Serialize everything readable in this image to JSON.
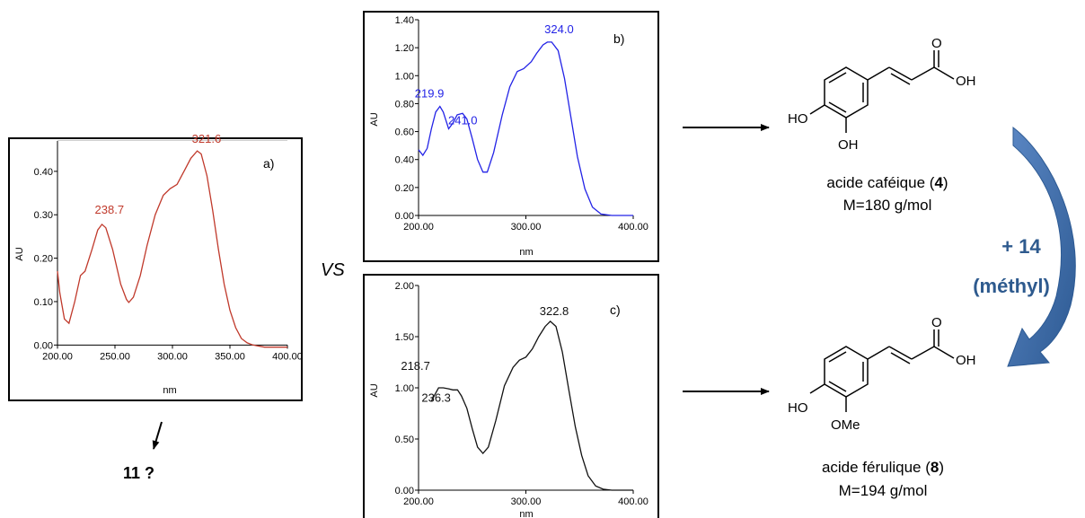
{
  "chart_data": [
    {
      "type": "line",
      "panel_label": "a)",
      "color": "#c0392b",
      "ylabel": "AU",
      "xlabel": "nm",
      "xlim": [
        200,
        400
      ],
      "ylim": [
        -0.02,
        0.47
      ],
      "x_ticks": [
        200,
        250,
        300,
        350,
        400
      ],
      "x_tick_labels": [
        "200.00",
        "250.00",
        "300.00",
        "350.00",
        "400.00"
      ],
      "y_ticks": [
        0.0,
        0.1,
        0.2,
        0.3,
        0.4
      ],
      "y_tick_labels": [
        "0.00",
        "0.10",
        "0.20",
        "0.30",
        "0.40"
      ],
      "grid": false,
      "peak_labels": [
        {
          "x": 238.7,
          "y": 0.278,
          "text": "238.7"
        },
        {
          "x": 321.6,
          "y": 0.447,
          "text": "321.6"
        }
      ],
      "x": [
        200,
        202,
        206,
        210,
        215,
        220,
        224,
        230,
        235,
        238.7,
        242,
        248,
        255,
        260,
        262,
        266,
        272,
        278,
        285,
        292,
        298,
        304,
        310,
        316,
        321.6,
        325,
        330,
        335,
        340,
        345,
        350,
        355,
        360,
        365,
        370,
        380,
        390,
        400
      ],
      "y": [
        0.17,
        0.12,
        0.06,
        0.05,
        0.1,
        0.16,
        0.17,
        0.22,
        0.265,
        0.278,
        0.27,
        0.22,
        0.14,
        0.105,
        0.098,
        0.11,
        0.16,
        0.23,
        0.3,
        0.345,
        0.36,
        0.37,
        0.4,
        0.43,
        0.447,
        0.44,
        0.39,
        0.31,
        0.22,
        0.14,
        0.08,
        0.04,
        0.015,
        0.005,
        0.0,
        -0.005,
        -0.005,
        -0.005
      ]
    },
    {
      "type": "line",
      "panel_label": "b)",
      "color": "#2323e6",
      "ylabel": "AU",
      "xlabel": "nm",
      "xlim": [
        200,
        400
      ],
      "ylim": [
        0,
        1.4
      ],
      "x_ticks": [
        200,
        300,
        400
      ],
      "x_tick_labels": [
        "200.00",
        "300.00",
        "400.00"
      ],
      "y_ticks": [
        0.0,
        0.2,
        0.4,
        0.6,
        0.8,
        1.0,
        1.2,
        1.4
      ],
      "y_tick_labels": [
        "0.00",
        "0.20",
        "0.40",
        "0.60",
        "0.80",
        "1.00",
        "1.20",
        "1.40"
      ],
      "grid": false,
      "peak_labels": [
        {
          "x": 219.9,
          "y": 0.78,
          "text": "219.9"
        },
        {
          "x": 241.0,
          "y": 0.73,
          "text": "241.0"
        },
        {
          "x": 324.0,
          "y": 1.24,
          "text": "324.0"
        }
      ],
      "x": [
        200,
        204,
        208,
        212,
        216,
        219.9,
        223,
        228,
        232,
        236,
        241,
        245,
        250,
        255,
        260,
        264,
        270,
        278,
        285,
        292,
        298,
        305,
        310,
        316,
        320,
        324,
        330,
        336,
        342,
        348,
        355,
        362,
        370,
        380,
        390,
        400
      ],
      "y": [
        0.47,
        0.43,
        0.48,
        0.62,
        0.74,
        0.78,
        0.74,
        0.62,
        0.66,
        0.72,
        0.73,
        0.69,
        0.55,
        0.4,
        0.31,
        0.31,
        0.45,
        0.72,
        0.92,
        1.03,
        1.05,
        1.1,
        1.16,
        1.22,
        1.24,
        1.24,
        1.18,
        0.98,
        0.7,
        0.42,
        0.19,
        0.06,
        0.01,
        0.0,
        0.0,
        0.0
      ]
    },
    {
      "type": "line",
      "panel_label": "c)",
      "color": "#111111",
      "ylabel": "AU",
      "xlabel": "nm",
      "xlim": [
        200,
        400
      ],
      "ylim": [
        0,
        2.0
      ],
      "x_ticks": [
        200,
        300,
        400
      ],
      "x_tick_labels": [
        "200.00",
        "300.00",
        "400.00"
      ],
      "y_ticks": [
        0.0,
        0.5,
        1.0,
        1.5,
        2.0
      ],
      "y_tick_labels": [
        "0.00",
        "0.50",
        "1.00",
        "1.50",
        "2.00"
      ],
      "grid": false,
      "peak_labels": [
        {
          "x": 218.7,
          "y": 1.0,
          "text": "218.7"
        },
        {
          "x": 236.3,
          "y": 0.98,
          "text": "236.3"
        },
        {
          "x": 322.8,
          "y": 1.65,
          "text": "322.8"
        }
      ],
      "x": [
        212,
        215,
        218.7,
        223,
        228,
        232,
        236.3,
        240,
        245,
        250,
        255,
        260,
        265,
        272,
        280,
        288,
        294,
        300,
        306,
        312,
        318,
        322.8,
        328,
        334,
        340,
        346,
        352,
        358,
        365,
        372,
        380,
        390,
        400
      ],
      "y": [
        0.87,
        0.93,
        1.0,
        1.0,
        0.99,
        0.98,
        0.98,
        0.92,
        0.8,
        0.6,
        0.42,
        0.36,
        0.42,
        0.68,
        1.02,
        1.2,
        1.27,
        1.3,
        1.38,
        1.5,
        1.6,
        1.65,
        1.6,
        1.35,
        0.98,
        0.62,
        0.34,
        0.14,
        0.04,
        0.01,
        0.0,
        0.0,
        0.0
      ]
    }
  ],
  "comparison_label": "VS",
  "unknown_label": "11 ?",
  "caffeic": {
    "name_prefix": "acide caféique (",
    "number": "4",
    "name_suffix": ")",
    "mass": "M=180 g/mol",
    "atoms": {
      "o": "O",
      "oh_acid": "OH",
      "ho": "HO",
      "oh_ring": "OH"
    }
  },
  "ferulic": {
    "name_prefix": "acide férulique (",
    "number": "8",
    "name_suffix": ")",
    "mass": "M=194 g/mol",
    "atoms": {
      "o": "O",
      "oh_acid": "OH",
      "ho": "HO",
      "ome": "OMe"
    }
  },
  "methyl_arrow": {
    "line1": "+ 14",
    "line2": "(méthyl)",
    "color": "#3d6aa5"
  }
}
